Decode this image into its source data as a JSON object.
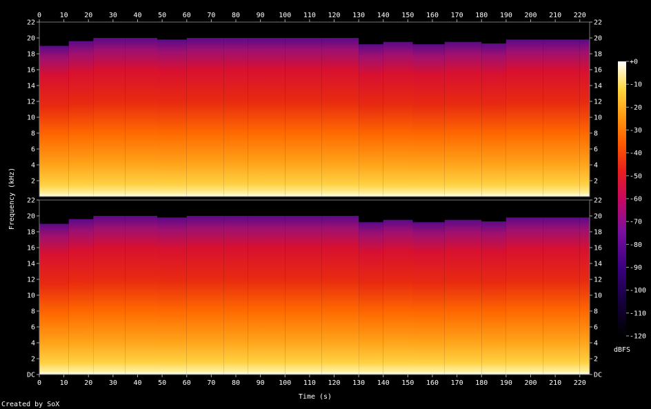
{
  "chart_data": {
    "type": "heatmap",
    "title": "",
    "xlabel": "Time (s)",
    "ylabel": "Frequency (kHz)",
    "xlim": [
      0,
      224
    ],
    "ylim": [
      0,
      22
    ],
    "x_ticks": [
      "0",
      "10",
      "20",
      "30",
      "40",
      "50",
      "60",
      "70",
      "80",
      "90",
      "100",
      "110",
      "120",
      "130",
      "140",
      "150",
      "160",
      "170",
      "180",
      "190",
      "200",
      "210",
      "220"
    ],
    "y_ticks_top": [
      "22",
      "20",
      "18",
      "16",
      "14",
      "12",
      "10",
      "8",
      "6",
      "4",
      "2"
    ],
    "y_ticks_bottom": [
      "22",
      "20",
      "18",
      "16",
      "14",
      "12",
      "10",
      "8",
      "6",
      "4",
      "2",
      "DC"
    ],
    "colorbar": {
      "label": "dBFS",
      "range": [
        -120,
        0
      ],
      "ticks": [
        "+0",
        "-10",
        "-20",
        "-30",
        "-40",
        "-50",
        "-60",
        "-70",
        "-80",
        "-90",
        "-100",
        "-110",
        "-120"
      ]
    },
    "channels": [
      {
        "name": "",
        "segment_cutoffs_khz": [
          [
            0,
            19
          ],
          [
            12,
            19.6
          ],
          [
            22,
            20
          ],
          [
            35,
            20
          ],
          [
            48,
            19.8
          ],
          [
            60,
            20
          ],
          [
            75,
            20
          ],
          [
            85,
            20
          ],
          [
            100,
            20
          ],
          [
            115,
            20
          ],
          [
            130,
            19.2
          ],
          [
            140,
            19.5
          ],
          [
            152,
            19.2
          ],
          [
            165,
            19.5
          ],
          [
            180,
            19.3
          ],
          [
            190,
            19.8
          ],
          [
            205,
            19.8
          ],
          [
            220,
            19.8
          ]
        ]
      },
      {
        "name": "",
        "segment_cutoffs_khz": [
          [
            0,
            19
          ],
          [
            12,
            19.6
          ],
          [
            22,
            20
          ],
          [
            35,
            20
          ],
          [
            48,
            19.8
          ],
          [
            60,
            20
          ],
          [
            75,
            20
          ],
          [
            85,
            20
          ],
          [
            100,
            20
          ],
          [
            115,
            20
          ],
          [
            130,
            19.2
          ],
          [
            140,
            19.5
          ],
          [
            152,
            19.2
          ],
          [
            165,
            19.5
          ],
          [
            180,
            19.3
          ],
          [
            190,
            19.8
          ],
          [
            205,
            19.8
          ],
          [
            220,
            19.8
          ]
        ]
      }
    ],
    "colors": {
      "background": "#000000",
      "palette": [
        "#000000",
        "#1a0030",
        "#3a0070",
        "#7a10a0",
        "#c0106a",
        "#e81e1e",
        "#ff5a00",
        "#ff9a10",
        "#ffd040",
        "#ffffd0",
        "#ffffff"
      ]
    }
  },
  "footer": {
    "credit": "Created by SoX"
  }
}
